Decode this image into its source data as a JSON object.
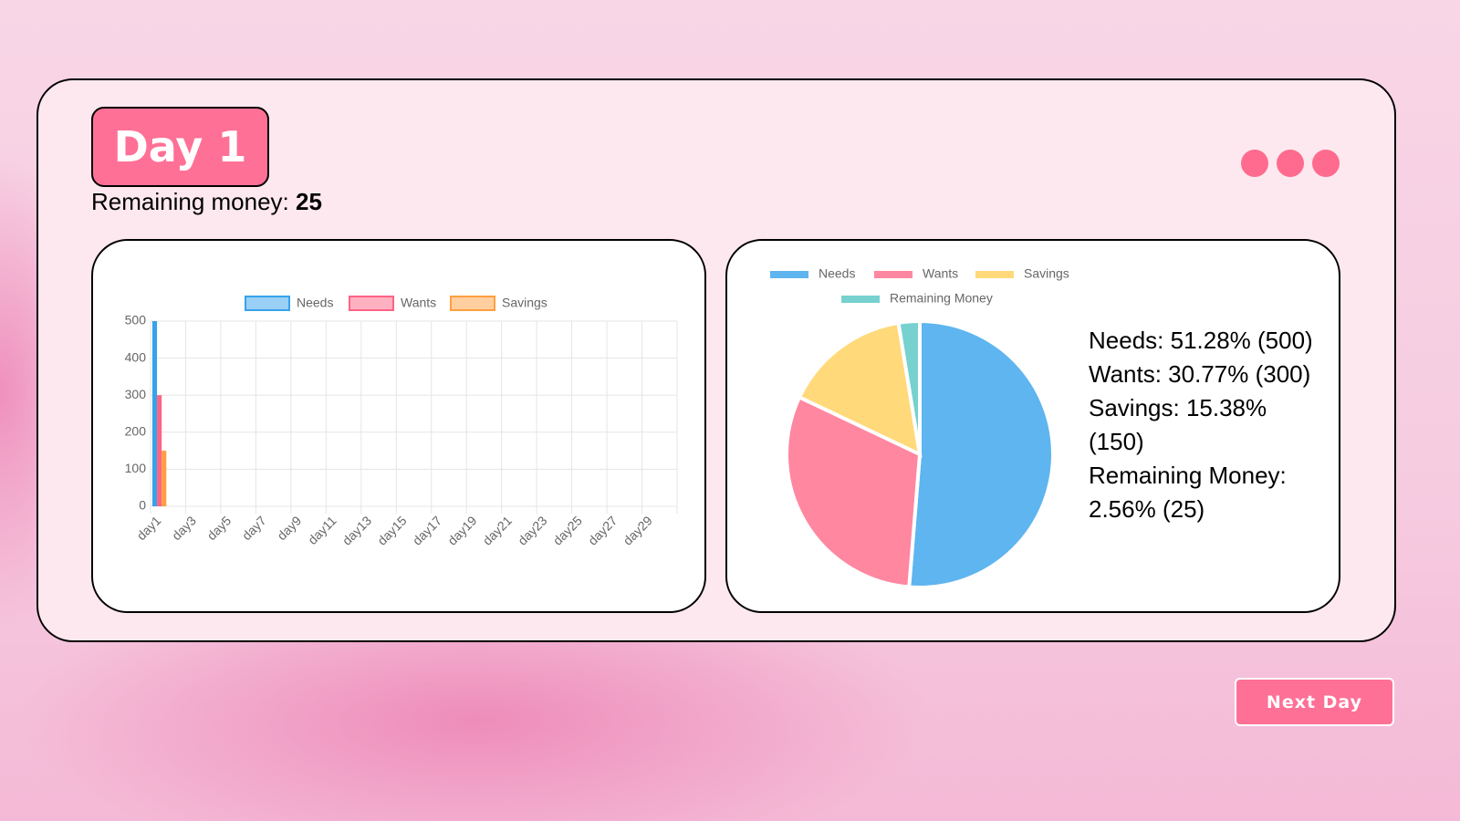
{
  "header": {
    "title": "Day 1",
    "remaining_label": "Remaining money:",
    "remaining_value": 25
  },
  "chart_data": [
    {
      "type": "bar",
      "categories": [
        "day1",
        null,
        "day3",
        null,
        "day5",
        null,
        "day7",
        null,
        "day9",
        null,
        "day11",
        null,
        "day13",
        null,
        "day15",
        null,
        "day17",
        null,
        "day19",
        null,
        "day21",
        null,
        "day23",
        null,
        "day25",
        null,
        "day27",
        null,
        "day29",
        null
      ],
      "series": [
        {
          "name": "Needs",
          "color": "#36a2eb",
          "values": [
            500,
            null,
            null,
            null,
            null,
            null,
            null,
            null,
            null,
            null,
            null,
            null,
            null,
            null,
            null,
            null,
            null,
            null,
            null,
            null,
            null,
            null,
            null,
            null,
            null,
            null,
            null,
            null,
            null,
            null
          ]
        },
        {
          "name": "Wants",
          "color": "#ff6384",
          "values": [
            300,
            null,
            null,
            null,
            null,
            null,
            null,
            null,
            null,
            null,
            null,
            null,
            null,
            null,
            null,
            null,
            null,
            null,
            null,
            null,
            null,
            null,
            null,
            null,
            null,
            null,
            null,
            null,
            null,
            null
          ]
        },
        {
          "name": "Savings",
          "color": "#ff9f40",
          "values": [
            150,
            null,
            null,
            null,
            null,
            null,
            null,
            null,
            null,
            null,
            null,
            null,
            null,
            null,
            null,
            null,
            null,
            null,
            null,
            null,
            null,
            null,
            null,
            null,
            null,
            null,
            null,
            null,
            null,
            null
          ]
        }
      ],
      "ylim": [
        0,
        500
      ],
      "yticks": [
        0,
        100,
        200,
        300,
        400,
        500
      ],
      "grid": true,
      "legend": "top"
    },
    {
      "type": "pie",
      "categories": [
        "Needs",
        "Wants",
        "Savings",
        "Remaining Money"
      ],
      "values": [
        500,
        300,
        150,
        25
      ],
      "colors": [
        "#5eb5ef",
        "#ff87a0",
        "#ffd97a",
        "#76d1cf"
      ],
      "legend": "top"
    }
  ],
  "summary": [
    "Needs: 51.28% (500)",
    "Wants: 30.77% (300)",
    "Savings: 15.38% (150)",
    "Remaining Money: 2.56% (25)"
  ],
  "button": "Next Day"
}
